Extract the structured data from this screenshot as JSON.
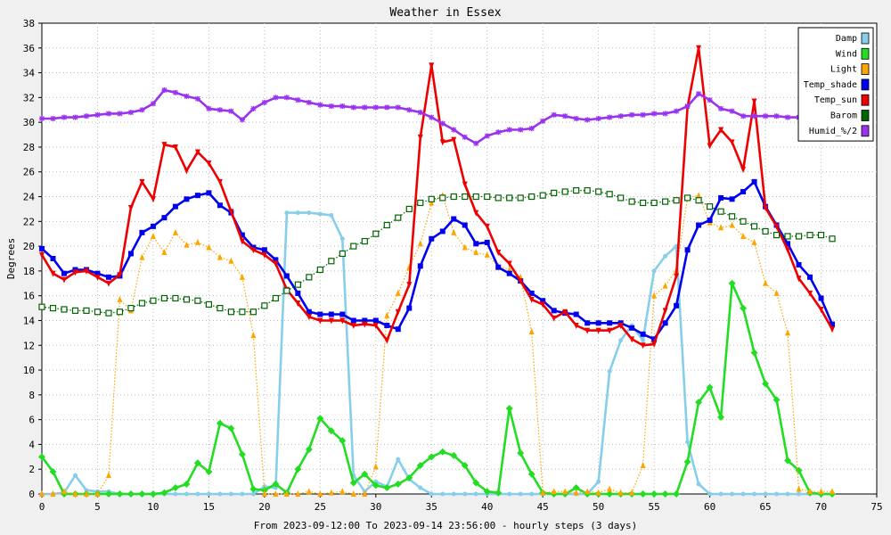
{
  "chart_data": {
    "type": "line",
    "title": "Weather in Essex",
    "xlabel": "From 2023-09-12:00 To 2023-09-14 23:56:00 - hourly steps (3 days)",
    "ylabel": "Degrees",
    "xlim": [
      0,
      75
    ],
    "ylim": [
      0,
      38
    ],
    "xticks": [
      0,
      5,
      10,
      15,
      20,
      25,
      30,
      35,
      40,
      45,
      50,
      55,
      60,
      65,
      70,
      75
    ],
    "yticks": [
      0,
      2,
      4,
      6,
      8,
      10,
      12,
      14,
      16,
      18,
      20,
      22,
      24,
      26,
      28,
      30,
      32,
      34,
      36,
      38
    ],
    "grid": true,
    "legend_position": "top-right",
    "x": [
      0,
      1,
      2,
      3,
      4,
      5,
      6,
      7,
      8,
      9,
      10,
      11,
      12,
      13,
      14,
      15,
      16,
      17,
      18,
      19,
      20,
      21,
      22,
      23,
      24,
      25,
      26,
      27,
      28,
      29,
      30,
      31,
      32,
      33,
      34,
      35,
      36,
      37,
      38,
      39,
      40,
      41,
      42,
      43,
      44,
      45,
      46,
      47,
      48,
      49,
      50,
      51,
      52,
      53,
      54,
      55,
      56,
      57,
      58,
      59,
      60,
      61,
      62,
      63,
      64,
      65,
      66,
      67,
      68,
      69,
      70,
      71
    ],
    "series": [
      {
        "name": "Damp",
        "color": "#87ceeb",
        "style": "solid",
        "marker": "circle",
        "values": [
          0,
          0,
          0.1,
          1.5,
          0.3,
          0.2,
          0.2,
          0,
          0,
          0,
          0,
          0,
          0,
          0,
          0,
          0,
          0,
          0,
          0,
          0,
          0.6,
          0.5,
          22.7,
          22.7,
          22.7,
          22.6,
          22.5,
          20.6,
          1.5,
          0.2,
          1,
          0.6,
          2.8,
          1.2,
          0.5,
          0,
          0,
          0,
          0,
          0,
          0,
          0,
          0,
          0,
          0,
          0,
          0,
          0,
          0,
          0,
          1,
          9.9,
          12.4,
          13.6,
          12.4,
          18,
          19.2,
          20,
          4.2,
          0.8,
          0,
          0,
          0,
          0,
          0,
          0,
          0,
          0,
          0,
          0,
          0,
          0
        ]
      },
      {
        "name": "Wind",
        "color": "#22dd22",
        "style": "solid",
        "marker": "diamond",
        "values": [
          3,
          1.8,
          0,
          0,
          0,
          0,
          0,
          0,
          0,
          0,
          0,
          0.1,
          0.5,
          0.8,
          2.5,
          1.8,
          5.7,
          5.3,
          3.2,
          0.4,
          0.3,
          0.8,
          0.1,
          2,
          3.6,
          6.1,
          5.1,
          4.3,
          0.9,
          1.6,
          0.7,
          0.5,
          0.8,
          1.3,
          2.3,
          3,
          3.4,
          3.1,
          2.3,
          0.9,
          0.2,
          0.1,
          6.9,
          3.3,
          1.6,
          0.1,
          0,
          0,
          0.5,
          0,
          0,
          0,
          0,
          0,
          0,
          0,
          0,
          0,
          2.6,
          7.4,
          8.6,
          6.2,
          17,
          15,
          11.4,
          8.9,
          7.6,
          2.7,
          1.9,
          0.1,
          0,
          0
        ]
      },
      {
        "name": "Light",
        "color": "#ffa500",
        "style": "dotted",
        "marker": "triangle-up",
        "values": [
          0,
          0,
          0.2,
          0,
          0,
          0,
          1.5,
          15.7,
          14.8,
          19.1,
          20.8,
          19.5,
          21.1,
          20.1,
          20.3,
          19.9,
          19.1,
          18.8,
          17.5,
          12.8,
          0,
          0,
          0,
          0,
          0.2,
          0,
          0.1,
          0.2,
          0,
          0,
          2.2,
          14.4,
          16.2,
          18.3,
          20.2,
          23.5,
          24.1,
          21.1,
          19.9,
          19.5,
          19.3,
          18.4,
          18.1,
          17.5,
          13.1,
          0.1,
          0.2,
          0.2,
          0.1,
          0.2,
          0.1,
          0.4,
          0.1,
          0.1,
          2.3,
          16,
          16.8,
          18.1,
          23.9,
          24.1,
          21.9,
          21.5,
          21.7,
          20.8,
          20.3,
          17,
          16.2,
          13,
          0.4,
          0.2,
          0.2,
          0.2
        ]
      },
      {
        "name": "Temp_shade",
        "color": "#0000ee",
        "style": "solid",
        "marker": "square",
        "values": [
          19.8,
          19,
          17.8,
          18.1,
          18.1,
          17.8,
          17.5,
          17.6,
          19.4,
          21.1,
          21.6,
          22.3,
          23.2,
          23.8,
          24.1,
          24.3,
          23.3,
          22.7,
          20.9,
          19.9,
          19.7,
          18.9,
          17.6,
          16.2,
          14.7,
          14.5,
          14.5,
          14.5,
          14,
          14,
          14,
          13.6,
          13.3,
          15,
          18.4,
          20.6,
          21.2,
          22.2,
          21.7,
          20.2,
          20.3,
          18.3,
          17.8,
          17.2,
          16.2,
          15.6,
          14.8,
          14.6,
          14.5,
          13.8,
          13.8,
          13.8,
          13.8,
          13.4,
          12.9,
          12.5,
          13.8,
          15.2,
          19.7,
          21.7,
          22.1,
          23.9,
          23.8,
          24.4,
          25.2,
          23.2,
          21.7,
          20.2,
          18.5,
          17.5,
          15.8,
          13.7
        ]
      },
      {
        "name": "Temp_sun",
        "color": "#ee0000",
        "style": "solid",
        "marker": "triangle-down",
        "values": [
          19.3,
          17.8,
          17.3,
          17.9,
          18,
          17.5,
          17,
          17.7,
          23.1,
          25.2,
          23.8,
          28.2,
          28,
          26.1,
          27.6,
          26.7,
          25.2,
          22.8,
          20.4,
          19.7,
          19.3,
          18.6,
          16.5,
          15.4,
          14.3,
          14,
          14,
          14,
          13.6,
          13.7,
          13.6,
          12.4,
          14.7,
          16.9,
          28.8,
          34.6,
          28.4,
          28.6,
          25,
          22.7,
          21.6,
          19.5,
          18.6,
          17.2,
          15.7,
          15.3,
          14.2,
          14.7,
          13.6,
          13.2,
          13.2,
          13.2,
          13.6,
          12.5,
          12,
          12.1,
          14.8,
          17.6,
          31.2,
          36,
          28.1,
          29.4,
          28.4,
          26.2,
          31.7,
          23.1,
          21.6,
          19.7,
          17.4,
          16.2,
          14.9,
          13.3
        ]
      },
      {
        "name": "Barom",
        "color": "#006400",
        "style": "dotted",
        "marker": "open-square",
        "values": [
          15.1,
          15,
          14.9,
          14.8,
          14.8,
          14.7,
          14.6,
          14.7,
          15,
          15.4,
          15.6,
          15.8,
          15.8,
          15.7,
          15.6,
          15.3,
          15,
          14.7,
          14.7,
          14.7,
          15.2,
          15.8,
          16.4,
          16.9,
          17.5,
          18.1,
          18.8,
          19.4,
          20,
          20.4,
          21,
          21.7,
          22.3,
          23,
          23.5,
          23.8,
          23.9,
          24,
          24,
          24,
          24,
          23.9,
          23.9,
          23.9,
          24,
          24.1,
          24.3,
          24.4,
          24.5,
          24.5,
          24.4,
          24.2,
          23.9,
          23.6,
          23.5,
          23.5,
          23.6,
          23.7,
          23.9,
          23.7,
          23.2,
          22.8,
          22.4,
          22,
          21.6,
          21.2,
          20.9,
          20.8,
          20.8,
          20.9,
          20.9,
          20.6
        ]
      },
      {
        "name": "Humid_%/2",
        "color": "#9933ee",
        "style": "solid",
        "marker": "star",
        "values": [
          30.3,
          30.3,
          30.4,
          30.4,
          30.5,
          30.6,
          30.7,
          30.7,
          30.8,
          31,
          31.5,
          32.6,
          32.4,
          32.1,
          31.9,
          31.1,
          31,
          30.9,
          30.2,
          31.1,
          31.6,
          32,
          32,
          31.8,
          31.6,
          31.4,
          31.3,
          31.3,
          31.2,
          31.2,
          31.2,
          31.2,
          31.2,
          31,
          30.8,
          30.4,
          29.9,
          29.4,
          28.8,
          28.3,
          28.9,
          29.2,
          29.4,
          29.4,
          29.5,
          30.1,
          30.6,
          30.5,
          30.3,
          30.2,
          30.3,
          30.4,
          30.5,
          30.6,
          30.6,
          30.7,
          30.7,
          30.9,
          31.3,
          32.3,
          31.8,
          31.1,
          30.9,
          30.5,
          30.5,
          30.5,
          30.5,
          30.4,
          30.4,
          30.4,
          null,
          null
        ]
      }
    ]
  }
}
